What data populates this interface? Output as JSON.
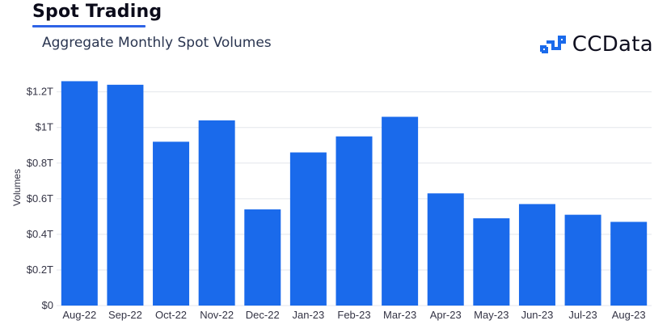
{
  "header": {
    "section_title": "Spot Trading",
    "subtitle": "Aggregate Monthly Spot Volumes",
    "brand": "CCData"
  },
  "colors": {
    "bar": "#1a6aeb",
    "grid": "#e3e6ec",
    "accent": "#2e63e6",
    "text": "#333344"
  },
  "icons": {
    "brand_logo": "ccdata-logo-icon"
  },
  "chart_data": {
    "type": "bar",
    "title": "Aggregate Monthly Spot Volumes",
    "xlabel": "",
    "ylabel": "Volumes",
    "categories": [
      "Aug-22",
      "Sep-22",
      "Oct-22",
      "Nov-22",
      "Dec-22",
      "Jan-23",
      "Feb-23",
      "Mar-23",
      "Apr-23",
      "May-23",
      "Jun-23",
      "Jul-23",
      "Aug-23"
    ],
    "values": [
      1.26,
      1.24,
      0.92,
      1.04,
      0.54,
      0.86,
      0.95,
      1.06,
      0.63,
      0.49,
      0.57,
      0.51,
      0.47
    ],
    "unit": "T",
    "ylim": [
      0,
      1.2
    ],
    "yticks": [
      0,
      0.2,
      0.4,
      0.6,
      0.8,
      1.0,
      1.2
    ],
    "ytick_labels": [
      "$0",
      "$0.2T",
      "$0.4T",
      "$0.6T",
      "$0.8T",
      "$1T",
      "$1.2T"
    ],
    "grid": true,
    "legend": "none"
  }
}
